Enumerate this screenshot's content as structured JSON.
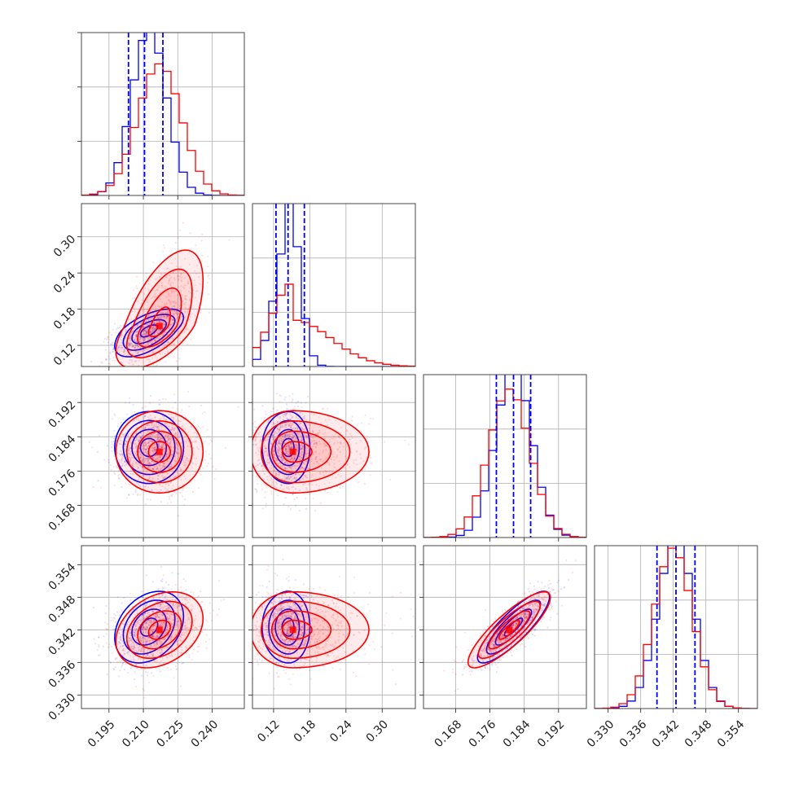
{
  "colors": {
    "blue": "#0000ff",
    "red": "#ff0000"
  },
  "chart_data": {
    "type": "corner",
    "grid": true,
    "params": [
      {
        "range": [
          0.183,
          0.254
        ],
        "ticks": [
          "0.195",
          "0.210",
          "0.225",
          "0.240"
        ],
        "tick_values": [
          0.195,
          0.21,
          0.225,
          0.24
        ]
      },
      {
        "range": [
          0.085,
          0.355
        ],
        "ticks": [
          "0.12",
          "0.18",
          "0.24",
          "0.30"
        ],
        "tick_values": [
          0.12,
          0.18,
          0.24,
          0.3
        ]
      },
      {
        "range": [
          0.1605,
          0.1985
        ],
        "ticks": [
          "0.168",
          "0.176",
          "0.184",
          "0.192"
        ],
        "tick_values": [
          0.168,
          0.176,
          0.184,
          0.192
        ]
      },
      {
        "range": [
          0.3275,
          0.3575
        ],
        "ticks": [
          "0.330",
          "0.336",
          "0.342",
          "0.348",
          "0.354"
        ],
        "tick_values": [
          0.33,
          0.336,
          0.342,
          0.348,
          0.354
        ]
      }
    ],
    "series": [
      {
        "color": "#0000ff",
        "means": [
          0.2125,
          0.145,
          0.1815,
          0.3425
        ],
        "sigmas": [
          0.0075,
          0.022,
          0.0042,
          0.0033
        ],
        "skew_scale": [
          1.0,
          0.8,
          1.0,
          1.0
        ],
        "quantiles": [
          [
            0.2035,
            0.2105,
            0.2185
          ],
          [
            0.124,
            0.144,
            0.171
          ],
          [
            0.1775,
            0.1815,
            0.1855
          ],
          [
            0.339,
            0.3425,
            0.346
          ]
        ]
      },
      {
        "color": "#ff0000",
        "means": [
          0.217,
          0.152,
          0.1805,
          0.342
        ],
        "sigmas": [
          0.0095,
          0.035,
          0.0048,
          0.0035
        ],
        "skew_scale": [
          1.0,
          1.8,
          1.0,
          1.0
        ],
        "quantiles": [
          [
            0.2035,
            0.2105,
            0.2185
          ],
          [
            0.124,
            0.144,
            0.171
          ],
          [
            0.1775,
            0.1815,
            0.1855
          ],
          [
            0.339,
            0.3425,
            0.346
          ]
        ]
      }
    ],
    "correlations": {
      "0-1": 0.6,
      "0-2": 0.0,
      "0-3": 0.3,
      "1-2": 0.0,
      "1-3": 0.0,
      "2-3": 0.85
    },
    "hist_bins": 20,
    "contour_levels_sigma": [
      0.5,
      1.0,
      1.5,
      2.0
    ]
  }
}
